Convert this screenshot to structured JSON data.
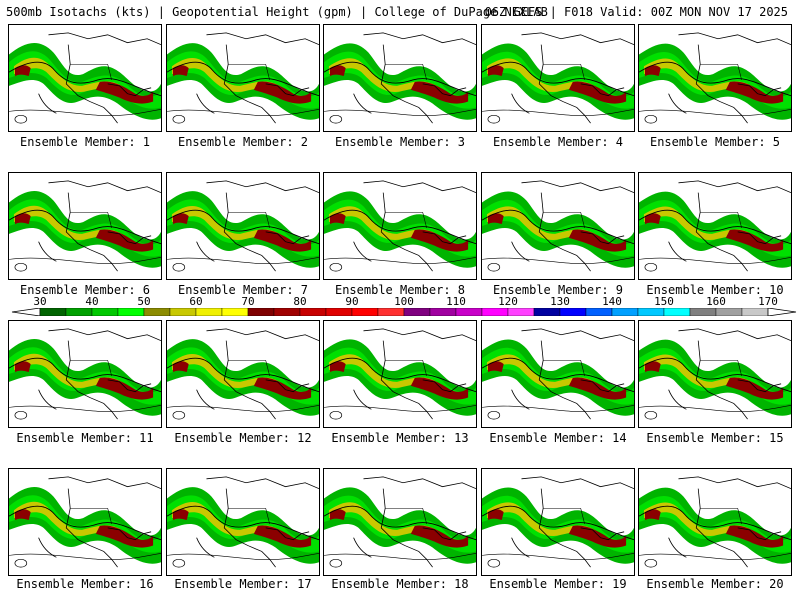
{
  "header": {
    "left": "500mb Isotachs (kts) | Geopotential Height (gpm) | College of DuPage NEXLAB",
    "right": "06Z GEFS | F018 Valid: 00Z MON NOV 17 2025"
  },
  "colorbar": {
    "ticks": [
      "30",
      "40",
      "50",
      "60",
      "70",
      "80",
      "90",
      "100",
      "110",
      "120",
      "130",
      "140",
      "150",
      "160",
      "170"
    ],
    "colors": [
      "#006400",
      "#00a000",
      "#00c800",
      "#00ff00",
      "#8c8c00",
      "#c8c800",
      "#f0f000",
      "#ffff00",
      "#800000",
      "#a00000",
      "#c80000",
      "#e00000",
      "#ff0000",
      "#ff3030",
      "#800080",
      "#a000a0",
      "#c800c8",
      "#ff00ff",
      "#ff40ff",
      "#0000a0",
      "#0000ff",
      "#0060ff",
      "#00a0ff",
      "#00c8ff",
      "#00ffff",
      "#808080",
      "#a0a0a0",
      "#c8c8c8"
    ]
  },
  "panels": [
    {
      "caption": "Ensemble Member: 1"
    },
    {
      "caption": "Ensemble Member: 2"
    },
    {
      "caption": "Ensemble Member: 3"
    },
    {
      "caption": "Ensemble Member: 4"
    },
    {
      "caption": "Ensemble Member: 5"
    },
    {
      "caption": "Ensemble Member: 6"
    },
    {
      "caption": "Ensemble Member: 7"
    },
    {
      "caption": "Ensemble Member: 8"
    },
    {
      "caption": "Ensemble Member: 9"
    },
    {
      "caption": "Ensemble Member: 10"
    },
    {
      "caption": "Ensemble Member: 11"
    },
    {
      "caption": "Ensemble Member: 12"
    },
    {
      "caption": "Ensemble Member: 13"
    },
    {
      "caption": "Ensemble Member: 14"
    },
    {
      "caption": "Ensemble Member: 15"
    },
    {
      "caption": "Ensemble Member: 16"
    },
    {
      "caption": "Ensemble Member: 17"
    },
    {
      "caption": "Ensemble Member: 18"
    },
    {
      "caption": "Ensemble Member: 19"
    },
    {
      "caption": "Ensemble Member: 20"
    }
  ]
}
